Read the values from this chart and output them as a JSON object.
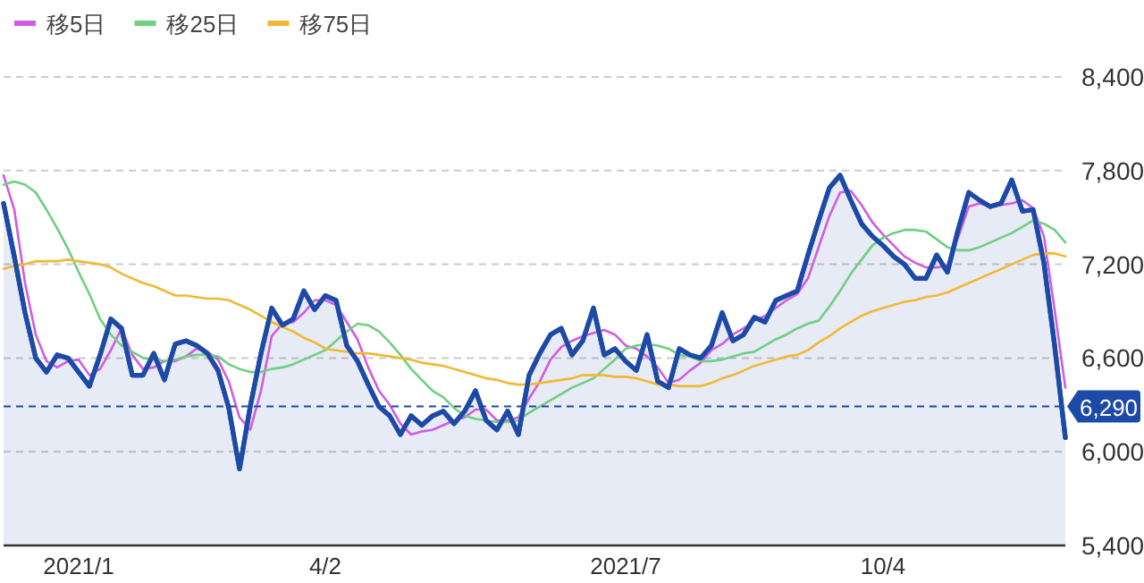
{
  "chart_data": {
    "type": "area",
    "categories": [
      null,
      null,
      null,
      null,
      null,
      null,
      null,
      "2021/1",
      null,
      null,
      null,
      null,
      null,
      null,
      null,
      null,
      null,
      null,
      null,
      null,
      null,
      null,
      null,
      null,
      null,
      null,
      null,
      null,
      null,
      null,
      "4/2",
      null,
      null,
      null,
      null,
      null,
      null,
      null,
      null,
      null,
      null,
      null,
      null,
      null,
      null,
      null,
      null,
      null,
      null,
      null,
      null,
      null,
      null,
      null,
      null,
      null,
      null,
      null,
      "2021/7",
      null,
      null,
      null,
      null,
      null,
      null,
      null,
      null,
      null,
      null,
      null,
      null,
      null,
      null,
      null,
      null,
      null,
      null,
      null,
      null,
      null,
      null,
      null,
      "10/4",
      null,
      null,
      null,
      null,
      null,
      null,
      null,
      null,
      null,
      null,
      null,
      null,
      null,
      null,
      null,
      null,
      null
    ],
    "series": [
      {
        "color": "#1c4aa6",
        "values": [
          7590,
          7250,
          6890,
          6600,
          6510,
          6620,
          6600,
          6510,
          6420,
          6620,
          6850,
          6790,
          6490,
          6490,
          6630,
          6460,
          6690,
          6710,
          6680,
          6630,
          6520,
          6280,
          5890,
          6290,
          6630,
          6920,
          6810,
          6850,
          7030,
          6910,
          7000,
          6970,
          6680,
          6580,
          6430,
          6290,
          6230,
          6110,
          6230,
          6170,
          6230,
          6260,
          6180,
          6260,
          6390,
          6200,
          6140,
          6260,
          6110,
          6490,
          6630,
          6750,
          6790,
          6620,
          6710,
          6920,
          6620,
          6660,
          6580,
          6520,
          6750,
          6450,
          6410,
          6660,
          6620,
          6600,
          6680,
          6890,
          6710,
          6750,
          6860,
          6830,
          6970,
          7000,
          7030,
          7260,
          7480,
          7690,
          7770,
          7610,
          7460,
          7380,
          7320,
          7250,
          7200,
          7110,
          7110,
          7260,
          7150,
          7420,
          7660,
          7610,
          7570,
          7590,
          7740,
          7540,
          7550,
          7210,
          6680,
          6090
        ]
      },
      {
        "type": "line",
        "name": "移5日",
        "color": "#d05ce3",
        "values": [
          7770,
          7550,
          7080,
          6750,
          6580,
          6540,
          6580,
          6590,
          6490,
          6530,
          6650,
          6790,
          6620,
          6530,
          6540,
          6580,
          6580,
          6610,
          6660,
          6640,
          6590,
          6450,
          6220,
          6140,
          6390,
          6740,
          6820,
          6830,
          6890,
          6970,
          6970,
          6940,
          6830,
          6720,
          6540,
          6390,
          6300,
          6180,
          6110,
          6130,
          6140,
          6170,
          6200,
          6220,
          6270,
          6270,
          6200,
          6200,
          6220,
          6340,
          6450,
          6590,
          6670,
          6710,
          6740,
          6760,
          6780,
          6750,
          6680,
          6660,
          6610,
          6540,
          6440,
          6460,
          6520,
          6570,
          6650,
          6690,
          6750,
          6790,
          6840,
          6870,
          6920,
          6970,
          7010,
          7110,
          7310,
          7510,
          7660,
          7670,
          7580,
          7470,
          7390,
          7320,
          7250,
          7210,
          7180,
          7180,
          7190,
          7370,
          7570,
          7590,
          7570,
          7580,
          7590,
          7610,
          7560,
          7380,
          6910,
          6410
        ]
      },
      {
        "type": "line",
        "name": "移25日",
        "color": "#6fcf7f",
        "values": [
          7710,
          7730,
          7710,
          7660,
          7550,
          7430,
          7300,
          7150,
          7010,
          6850,
          6750,
          6680,
          6640,
          6600,
          6590,
          6580,
          6590,
          6610,
          6620,
          6620,
          6610,
          6560,
          6530,
          6510,
          6510,
          6530,
          6540,
          6560,
          6590,
          6620,
          6650,
          6710,
          6770,
          6820,
          6810,
          6770,
          6700,
          6620,
          6530,
          6460,
          6390,
          6350,
          6280,
          6230,
          6210,
          6200,
          6190,
          6190,
          6200,
          6250,
          6290,
          6330,
          6370,
          6410,
          6440,
          6470,
          6530,
          6590,
          6660,
          6680,
          6690,
          6680,
          6660,
          6620,
          6610,
          6580,
          6580,
          6590,
          6610,
          6630,
          6640,
          6680,
          6720,
          6750,
          6790,
          6820,
          6840,
          6930,
          7030,
          7140,
          7230,
          7320,
          7370,
          7400,
          7420,
          7420,
          7410,
          7360,
          7310,
          7290,
          7290,
          7310,
          7340,
          7370,
          7400,
          7440,
          7480,
          7460,
          7420,
          7340
        ]
      },
      {
        "type": "line",
        "name": "移75日",
        "color": "#f2b833",
        "values": [
          7170,
          7190,
          7200,
          7220,
          7220,
          7220,
          7230,
          7220,
          7210,
          7200,
          7180,
          7140,
          7110,
          7080,
          7060,
          7030,
          7000,
          7000,
          6990,
          6980,
          6980,
          6970,
          6940,
          6910,
          6870,
          6830,
          6800,
          6770,
          6730,
          6700,
          6660,
          6650,
          6640,
          6630,
          6630,
          6620,
          6610,
          6600,
          6590,
          6570,
          6560,
          6550,
          6530,
          6510,
          6490,
          6470,
          6460,
          6440,
          6430,
          6430,
          6440,
          6450,
          6460,
          6470,
          6490,
          6490,
          6490,
          6480,
          6480,
          6470,
          6450,
          6430,
          6430,
          6420,
          6420,
          6420,
          6440,
          6470,
          6490,
          6520,
          6550,
          6570,
          6590,
          6610,
          6620,
          6650,
          6700,
          6740,
          6790,
          6830,
          6870,
          6900,
          6920,
          6940,
          6960,
          6970,
          6990,
          7000,
          7020,
          7050,
          7080,
          7110,
          7140,
          7170,
          7200,
          7230,
          7260,
          7270,
          7270,
          7250
        ]
      }
    ],
    "ylim": [
      5400,
      8400
    ],
    "yticks": [
      {
        "value": 5400,
        "label": "5,400"
      },
      {
        "value": 6000,
        "label": "6,000"
      },
      {
        "value": 6600,
        "label": "6,600"
      },
      {
        "value": 7200,
        "label": "7,200"
      },
      {
        "value": 7800,
        "label": "7,800"
      },
      {
        "value": 8400,
        "label": "8,400"
      }
    ],
    "grid": "y",
    "legend": "top left",
    "ref_lines": [
      {
        "axis": "y",
        "value": 6290,
        "label": "6,290",
        "color": "#1c4aa6",
        "line_style": "dashed"
      }
    ]
  }
}
